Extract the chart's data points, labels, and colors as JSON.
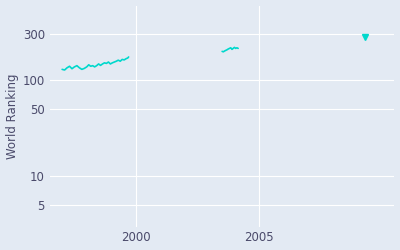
{
  "ylabel": "World Ranking",
  "bg_color": "#e3eaf3",
  "line_color": "#00d8cc",
  "grid_color": "#ffffff",
  "xlim": [
    1996.5,
    2010.5
  ],
  "ylim": [
    3,
    600
  ],
  "xticks": [
    2000,
    2005
  ],
  "yticks": [
    5,
    10,
    50,
    100,
    300
  ],
  "seg1_x": [
    1997.0,
    1997.1,
    1997.2,
    1997.3,
    1997.4,
    1997.5,
    1997.6,
    1997.7,
    1997.8,
    1997.9,
    1998.0,
    1998.08,
    1998.16,
    1998.24,
    1998.32,
    1998.4,
    1998.48,
    1998.56,
    1998.64,
    1998.72,
    1998.8,
    1998.88,
    1998.96,
    1999.04,
    1999.12,
    1999.2,
    1999.28,
    1999.36,
    1999.44,
    1999.52,
    1999.6,
    1999.65,
    1999.68,
    1999.7
  ],
  "seg1_y": [
    130,
    128,
    135,
    140,
    132,
    138,
    142,
    135,
    130,
    133,
    138,
    145,
    140,
    142,
    138,
    142,
    148,
    143,
    148,
    152,
    150,
    155,
    148,
    152,
    155,
    158,
    162,
    158,
    165,
    163,
    168,
    170,
    172,
    175
  ],
  "seg2_x": [
    2003.5,
    2003.55,
    2003.6,
    2003.65,
    2003.7,
    2003.75,
    2003.8,
    2003.85,
    2003.9,
    2003.95,
    2004.0,
    2004.05,
    2004.1,
    2004.15
  ],
  "seg2_y": [
    200,
    198,
    202,
    205,
    208,
    212,
    215,
    218,
    210,
    215,
    220,
    215,
    218,
    215
  ],
  "seg3_x": 2009.3,
  "seg3_y": 282
}
